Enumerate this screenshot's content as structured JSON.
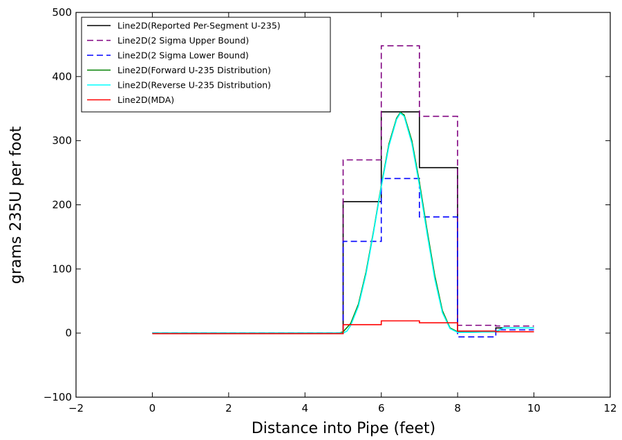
{
  "chart_data": {
    "type": "line",
    "title": "",
    "xlabel": "Distance into Pipe (feet)",
    "ylabel": "grams 235U per foot",
    "xlim": [
      -2,
      12
    ],
    "ylim": [
      -100,
      500
    ],
    "x_ticks": [
      "−2",
      "0",
      "2",
      "4",
      "6",
      "8",
      "10",
      "12"
    ],
    "y_ticks": [
      "−100",
      "0",
      "100",
      "200",
      "300",
      "400",
      "500"
    ],
    "x_tick_values": [
      -2,
      0,
      2,
      4,
      6,
      8,
      10,
      12
    ],
    "y_tick_values": [
      -100,
      0,
      100,
      200,
      300,
      400,
      500
    ],
    "grid": false,
    "legend_position": "top-left",
    "series": [
      {
        "name": "Line2D(Reported Per-Segment U-235)",
        "color": "#000000",
        "style": "solid",
        "x": [
          0,
          5,
          5,
          6,
          6,
          7,
          7,
          8,
          8,
          9,
          9,
          10
        ],
        "y": [
          0,
          0,
          205,
          205,
          345,
          345,
          258,
          258,
          3,
          3,
          8,
          8
        ]
      },
      {
        "name": "Line2D(2 Sigma Upper Bound)",
        "color": "#800080",
        "style": "dashed",
        "x": [
          0,
          5,
          5,
          6,
          6,
          7,
          7,
          8,
          8,
          9,
          9,
          10
        ],
        "y": [
          0,
          0,
          270,
          270,
          448,
          448,
          338,
          338,
          12,
          12,
          11,
          11
        ]
      },
      {
        "name": "Line2D(2 Sigma Lower Bound)",
        "color": "#0000ff",
        "style": "dashed",
        "x": [
          0,
          5,
          5,
          6,
          6,
          7,
          7,
          8,
          8,
          9,
          9,
          10
        ],
        "y": [
          0,
          0,
          143,
          143,
          241,
          241,
          181,
          181,
          -6,
          -6,
          5,
          5
        ]
      },
      {
        "name": "Line2D(Forward U-235 Distribution)",
        "color": "#008000",
        "style": "solid",
        "x": [
          0,
          4.9,
          5.0,
          5.2,
          5.4,
          5.6,
          5.8,
          6.0,
          6.2,
          6.4,
          6.5,
          6.6,
          6.8,
          7.0,
          7.2,
          7.4,
          7.6,
          7.8,
          8.0,
          8.2,
          9.0,
          9.2,
          10.0
        ],
        "y": [
          0,
          0,
          2,
          15,
          45,
          95,
          160,
          230,
          295,
          335,
          344,
          340,
          300,
          235,
          160,
          90,
          35,
          8,
          2,
          1,
          2,
          8,
          8
        ]
      },
      {
        "name": "Line2D(Reverse U-235 Distribution)",
        "color": "#00ffff",
        "style": "solid",
        "x": [
          0,
          5.0,
          5.1,
          5.2,
          5.4,
          5.6,
          5.8,
          6.0,
          6.2,
          6.4,
          6.5,
          6.6,
          6.8,
          7.0,
          7.2,
          7.4,
          7.6,
          7.8,
          8.0,
          8.2,
          9.0,
          9.2,
          10.0
        ],
        "y": [
          0,
          0,
          3,
          12,
          42,
          92,
          158,
          228,
          292,
          333,
          343,
          338,
          296,
          230,
          155,
          85,
          32,
          7,
          1,
          1,
          2,
          8,
          8
        ]
      },
      {
        "name": "Line2D(MDA)",
        "color": "#ff0000",
        "style": "solid",
        "x": [
          0,
          5,
          5,
          6,
          6,
          7,
          7,
          8,
          8,
          9,
          9,
          10
        ],
        "y": [
          -1,
          -1,
          13,
          13,
          19,
          19,
          16,
          16,
          3,
          3,
          2,
          2
        ]
      }
    ]
  }
}
